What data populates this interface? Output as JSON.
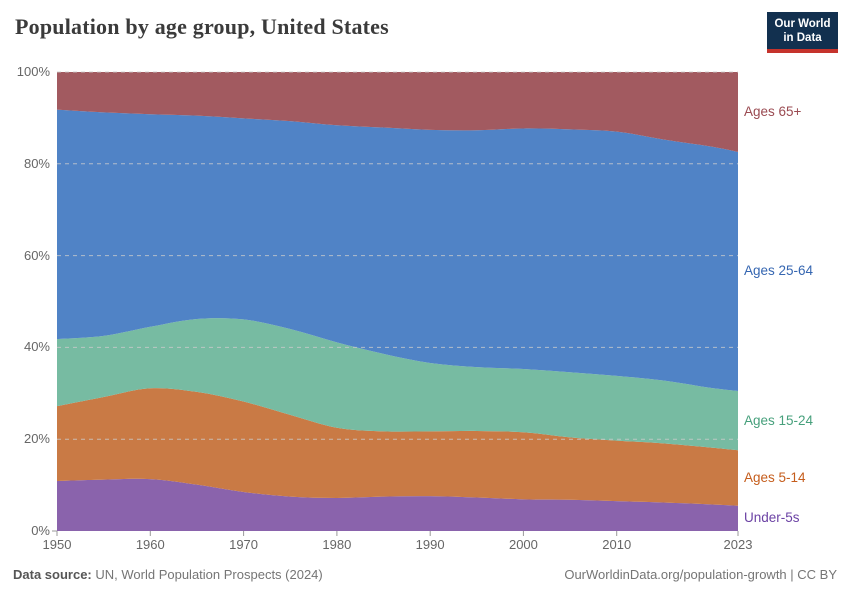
{
  "header": {
    "title": "Population by age group, United States",
    "logo": {
      "line1": "Our World",
      "line2": "in Data"
    }
  },
  "footer": {
    "source_label": "Data source:",
    "source_rest": "UN, World Population Prospects (2024)",
    "credit": "OurWorldinData.org/population-growth | CC BY"
  },
  "colors": {
    "grid": "#cccccc",
    "tick": "#999999",
    "axis_text": "#666666",
    "title_text": "#3b3b3b",
    "logo_bg": "#12304f",
    "logo_stripe": "#c5332c"
  },
  "chart_data": {
    "type": "area",
    "stacked": true,
    "unit": "%",
    "title": "Population by age group, United States",
    "xlabel": "",
    "ylabel": "",
    "ylim": [
      0,
      100
    ],
    "grid": "horizontal-dashed",
    "legend_position": "right-of-plot",
    "x": [
      1950,
      1955,
      1960,
      1965,
      1970,
      1975,
      1980,
      1985,
      1990,
      1995,
      2000,
      2005,
      2010,
      2015,
      2020,
      2023
    ],
    "x_ticks": [
      1950,
      1960,
      1970,
      1980,
      1990,
      2000,
      2010,
      2023
    ],
    "x_tick_labels": [
      "1950",
      "1960",
      "1970",
      "1980",
      "1990",
      "2000",
      "2010",
      "2023"
    ],
    "y_ticks": [
      0,
      20,
      40,
      60,
      80,
      100
    ],
    "y_tick_labels": [
      "0%",
      "20%",
      "40%",
      "60%",
      "80%",
      "100%"
    ],
    "series": [
      {
        "name": "Under-5s",
        "color": "#8a63ac",
        "label_color": "#6b42a4",
        "values": [
          10.9,
          11.2,
          11.3,
          10.1,
          8.5,
          7.5,
          7.2,
          7.5,
          7.6,
          7.3,
          6.9,
          6.8,
          6.5,
          6.2,
          5.8,
          5.5
        ]
      },
      {
        "name": "Ages 5-14",
        "color": "#c97a45",
        "label_color": "#c55d1c",
        "values": [
          16.3,
          18.0,
          19.8,
          20.2,
          19.7,
          17.8,
          15.3,
          14.2,
          14.1,
          14.5,
          14.6,
          13.6,
          13.2,
          12.9,
          12.4,
          12.1
        ]
      },
      {
        "name": "Ages 15-24",
        "color": "#77bba2",
        "label_color": "#47a07c",
        "values": [
          14.6,
          13.3,
          13.4,
          15.9,
          17.9,
          18.7,
          18.6,
          16.9,
          14.9,
          13.9,
          13.8,
          14.2,
          14.1,
          13.7,
          13.0,
          12.9
        ]
      },
      {
        "name": "Ages 25-64",
        "color": "#5083c6",
        "label_color": "#3566b1",
        "values": [
          50.0,
          48.7,
          46.3,
          44.3,
          43.8,
          45.3,
          47.3,
          49.3,
          50.8,
          51.6,
          52.4,
          52.9,
          53.2,
          52.5,
          52.6,
          52.1
        ]
      },
      {
        "name": "Ages 65+",
        "color": "#a25a60",
        "label_color": "#9a4a51",
        "values": [
          8.2,
          8.8,
          9.2,
          9.5,
          10.1,
          10.7,
          11.6,
          12.1,
          12.6,
          12.7,
          12.3,
          12.5,
          13.0,
          14.7,
          16.2,
          17.4
        ]
      }
    ]
  }
}
